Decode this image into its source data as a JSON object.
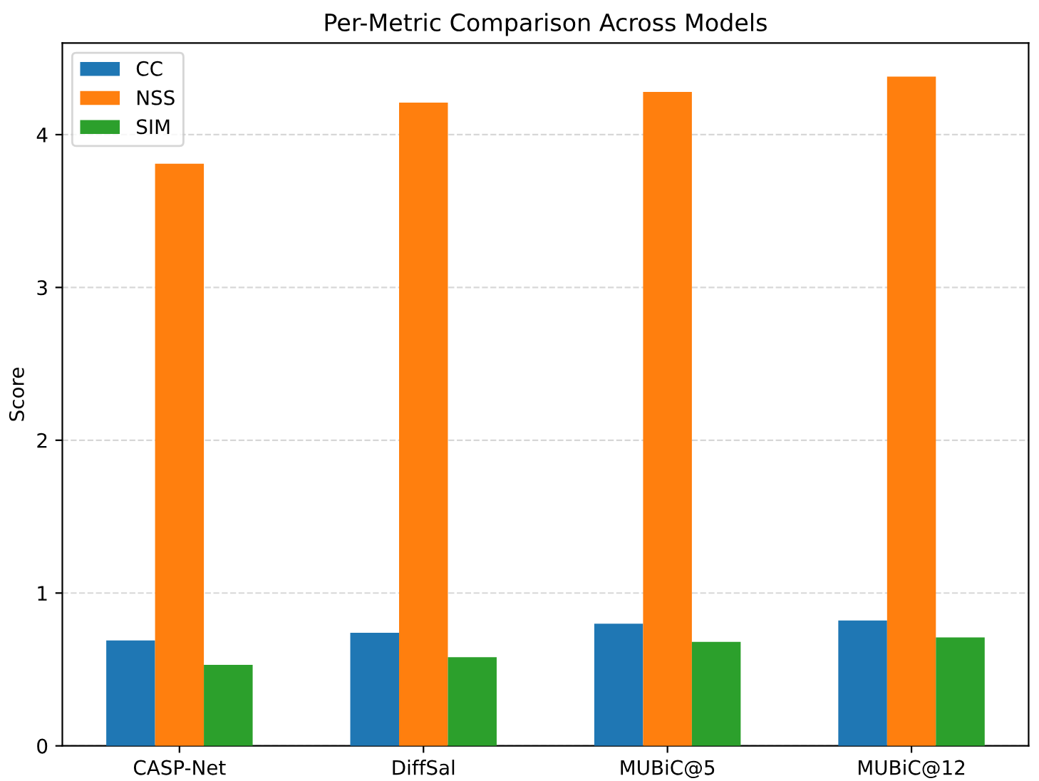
{
  "chart_data": {
    "type": "bar",
    "title": "Per-Metric Comparison Across Models",
    "ylabel": "Score",
    "categories": [
      "CASP-Net",
      "DiffSal",
      "MUBiC@5",
      "MUBiC@12"
    ],
    "series": [
      {
        "name": "CC",
        "color": "#1f77b4",
        "values": [
          0.69,
          0.74,
          0.8,
          0.82
        ]
      },
      {
        "name": "NSS",
        "color": "#ff7f0e",
        "values": [
          3.81,
          4.21,
          4.28,
          4.38
        ]
      },
      {
        "name": "SIM",
        "color": "#2ca02c",
        "values": [
          0.53,
          0.58,
          0.68,
          0.71
        ]
      }
    ],
    "ylim": [
      0,
      4.6
    ],
    "yticks": [
      0,
      1,
      2,
      3,
      4
    ],
    "grid": "y",
    "legend": "top left"
  }
}
